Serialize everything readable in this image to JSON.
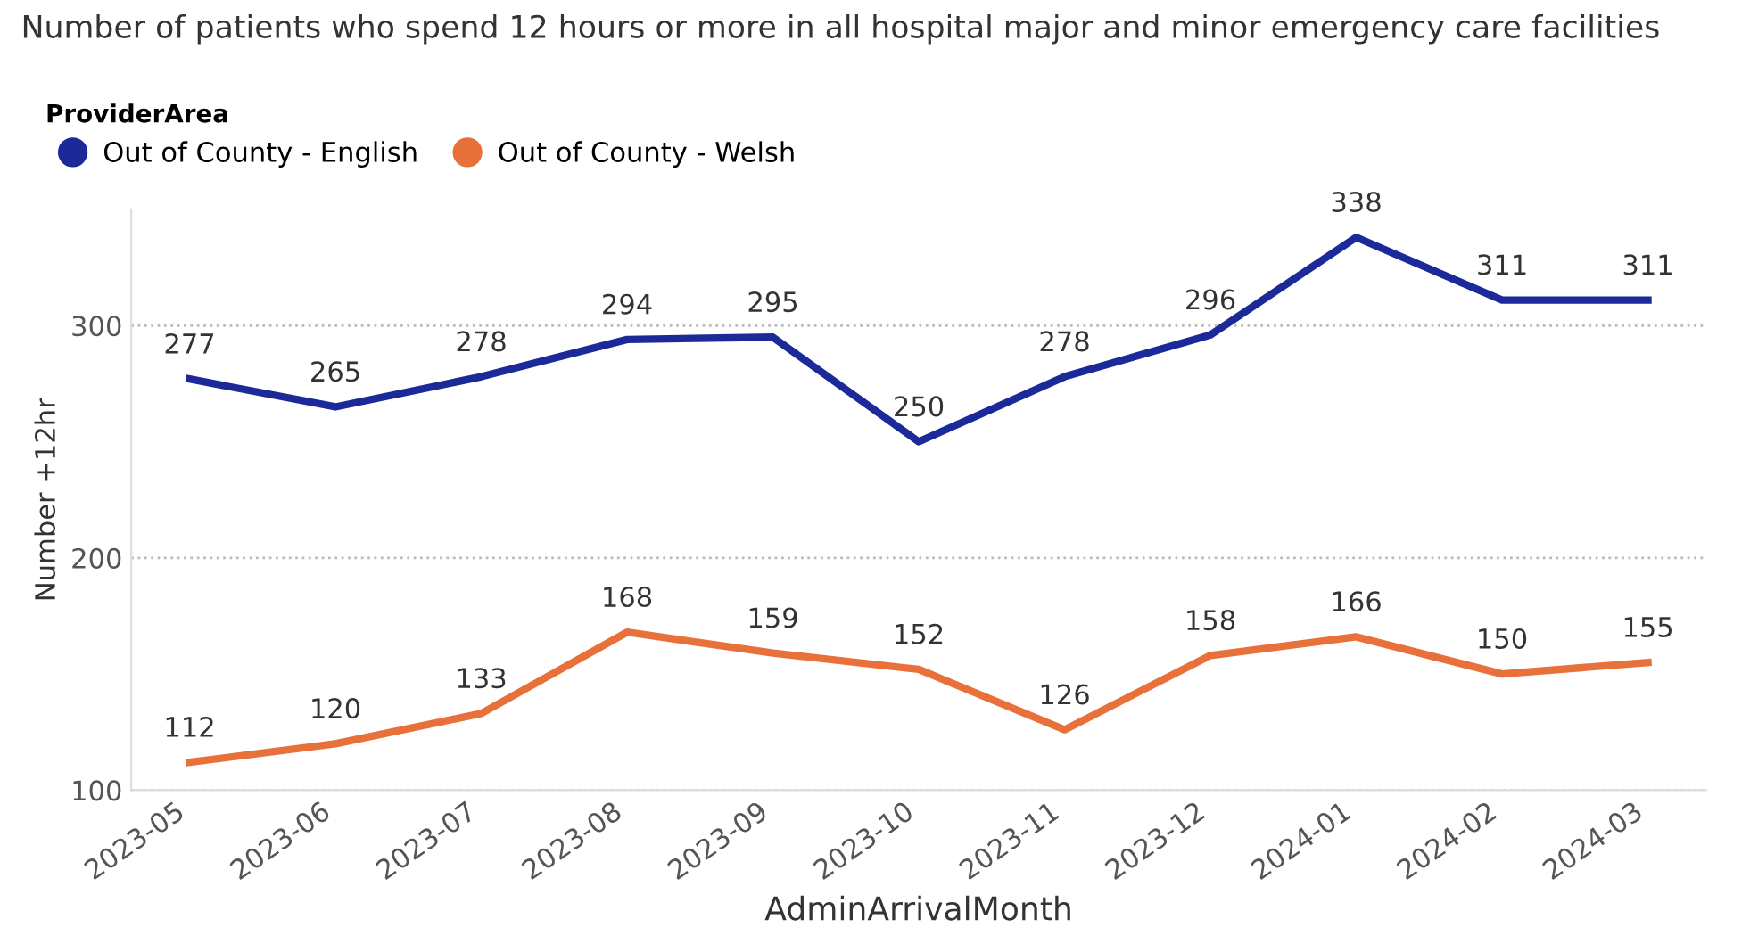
{
  "chart_data": {
    "type": "line",
    "title": "Number of patients who spend 12 hours or more in all hospital major and minor emergency care facilities",
    "xlabel": "AdminArrivalMonth",
    "ylabel": "Number +12hr",
    "legend_title": "ProviderArea",
    "categories": [
      "2023-05",
      "2023-06",
      "2023-07",
      "2023-08",
      "2023-09",
      "2023-10",
      "2023-11",
      "2023-12",
      "2024-01",
      "2024-02",
      "2024-03"
    ],
    "series": [
      {
        "name": "Out of County - English",
        "color": "#1c2a99",
        "values": [
          277,
          265,
          278,
          294,
          295,
          250,
          278,
          296,
          338,
          311,
          311
        ]
      },
      {
        "name": "Out of County - Welsh",
        "color": "#e8703a",
        "values": [
          112,
          120,
          133,
          168,
          159,
          152,
          126,
          158,
          166,
          150,
          155
        ]
      }
    ],
    "ylim": [
      100,
      350
    ],
    "yticks": [
      100,
      200,
      300
    ],
    "grid": "y",
    "legend": "top left",
    "data_labels": true,
    "line_style": "solid"
  }
}
